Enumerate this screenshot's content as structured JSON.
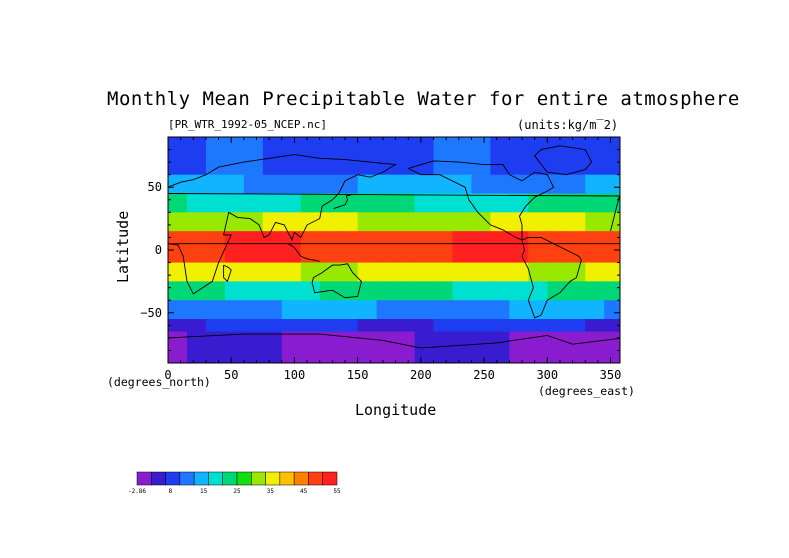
{
  "chart_data": {
    "type": "heatmap",
    "title": "Monthly Mean Precipitable Water for entire atmosphere",
    "source_file": "[PR_WTR_1992-05_NCEP.nc]",
    "units": "(units:kg/m‾2)",
    "xlabel": "Longitude",
    "ylabel": "Latitude",
    "x_unit_label": "(degrees_north)",
    "y_unit_label": "(degrees_east)",
    "xlim": [
      0,
      357.5
    ],
    "ylim": [
      -90,
      90
    ],
    "x_ticks": [
      0,
      50,
      100,
      150,
      200,
      250,
      300,
      350
    ],
    "y_ticks": [
      50,
      0,
      -50
    ],
    "colorbar": {
      "levels": [
        "-2.86",
        "8",
        "15",
        "25",
        "35",
        "45",
        "55"
      ],
      "colors": [
        "#8a1ccf",
        "#3a1cd0",
        "#1e3cf0",
        "#1e78ff",
        "#10b4ff",
        "#00e0d0",
        "#00d878",
        "#10e010",
        "#98e800",
        "#f0f000",
        "#ffc000",
        "#ff8000",
        "#ff4010",
        "#ff2020"
      ]
    },
    "lat_bands": [
      {
        "lat": [
          60,
          90
        ],
        "value": 8
      },
      {
        "lat": [
          45,
          60
        ],
        "value": 14
      },
      {
        "lat": [
          30,
          45
        ],
        "value": 22
      },
      {
        "lat": [
          15,
          30
        ],
        "value": 34
      },
      {
        "lat": [
          -10,
          15
        ],
        "value": 50
      },
      {
        "lat": [
          -25,
          -10
        ],
        "value": 36
      },
      {
        "lat": [
          -40,
          -25
        ],
        "value": 22
      },
      {
        "lat": [
          -55,
          -40
        ],
        "value": 13
      },
      {
        "lat": [
          -65,
          -55
        ],
        "value": 7
      },
      {
        "lat": [
          -90,
          -65
        ],
        "value": 1
      }
    ]
  }
}
